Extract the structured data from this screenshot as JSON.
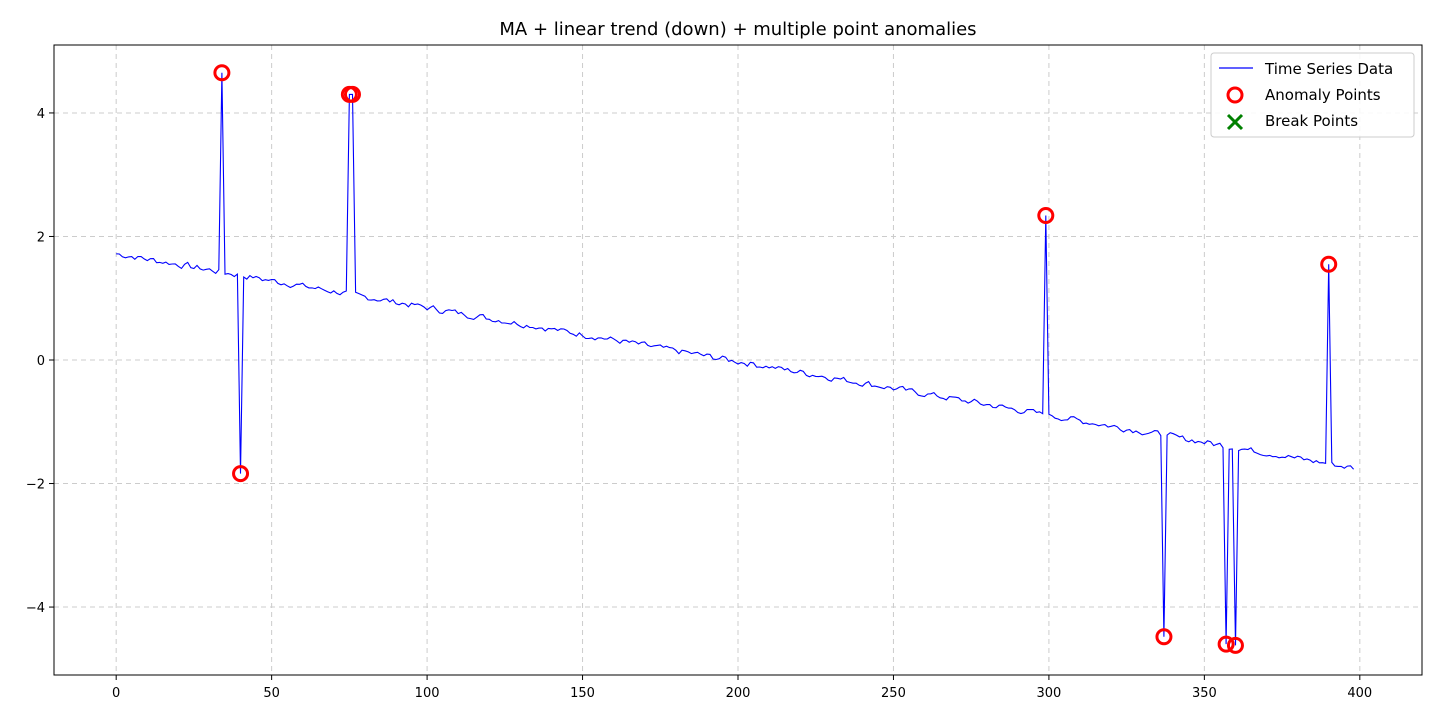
{
  "chart_data": {
    "type": "line",
    "title": "MA + linear trend (down) + multiple point anomalies",
    "xlabel": "",
    "ylabel": "",
    "xlim": [
      -20,
      420
    ],
    "ylim": [
      -5.1,
      5.1
    ],
    "xticks": [
      0,
      50,
      100,
      150,
      200,
      250,
      300,
      350,
      400
    ],
    "yticks": [
      -4,
      -2,
      0,
      2,
      4
    ],
    "grid": true,
    "legend_position": "top-right",
    "series": [
      {
        "name": "Time Series Data",
        "kind": "line",
        "color": "#0000ff",
        "trend": {
          "x_start": 0,
          "x_end": 398,
          "y_start": 1.72,
          "y_end": -1.75
        },
        "anomaly_spikes": [
          [
            34,
            4.65
          ],
          [
            40,
            -1.84
          ],
          [
            75,
            4.3
          ],
          [
            76,
            4.3
          ],
          [
            299,
            2.34
          ],
          [
            337,
            -4.48
          ],
          [
            357,
            -4.6
          ],
          [
            360,
            -4.62
          ],
          [
            390,
            1.55
          ]
        ]
      },
      {
        "name": "Anomaly Points",
        "kind": "scatter",
        "marker": "circle-open",
        "color": "#ff0000",
        "points": [
          [
            34,
            4.65
          ],
          [
            40,
            -1.84
          ],
          [
            75,
            4.3
          ],
          [
            76,
            4.3
          ],
          [
            299,
            2.34
          ],
          [
            337,
            -4.48
          ],
          [
            357,
            -4.6
          ],
          [
            360,
            -4.62
          ],
          [
            390,
            1.55
          ]
        ]
      },
      {
        "name": "Break Points",
        "kind": "scatter",
        "marker": "x",
        "color": "#008000",
        "points": []
      }
    ]
  }
}
